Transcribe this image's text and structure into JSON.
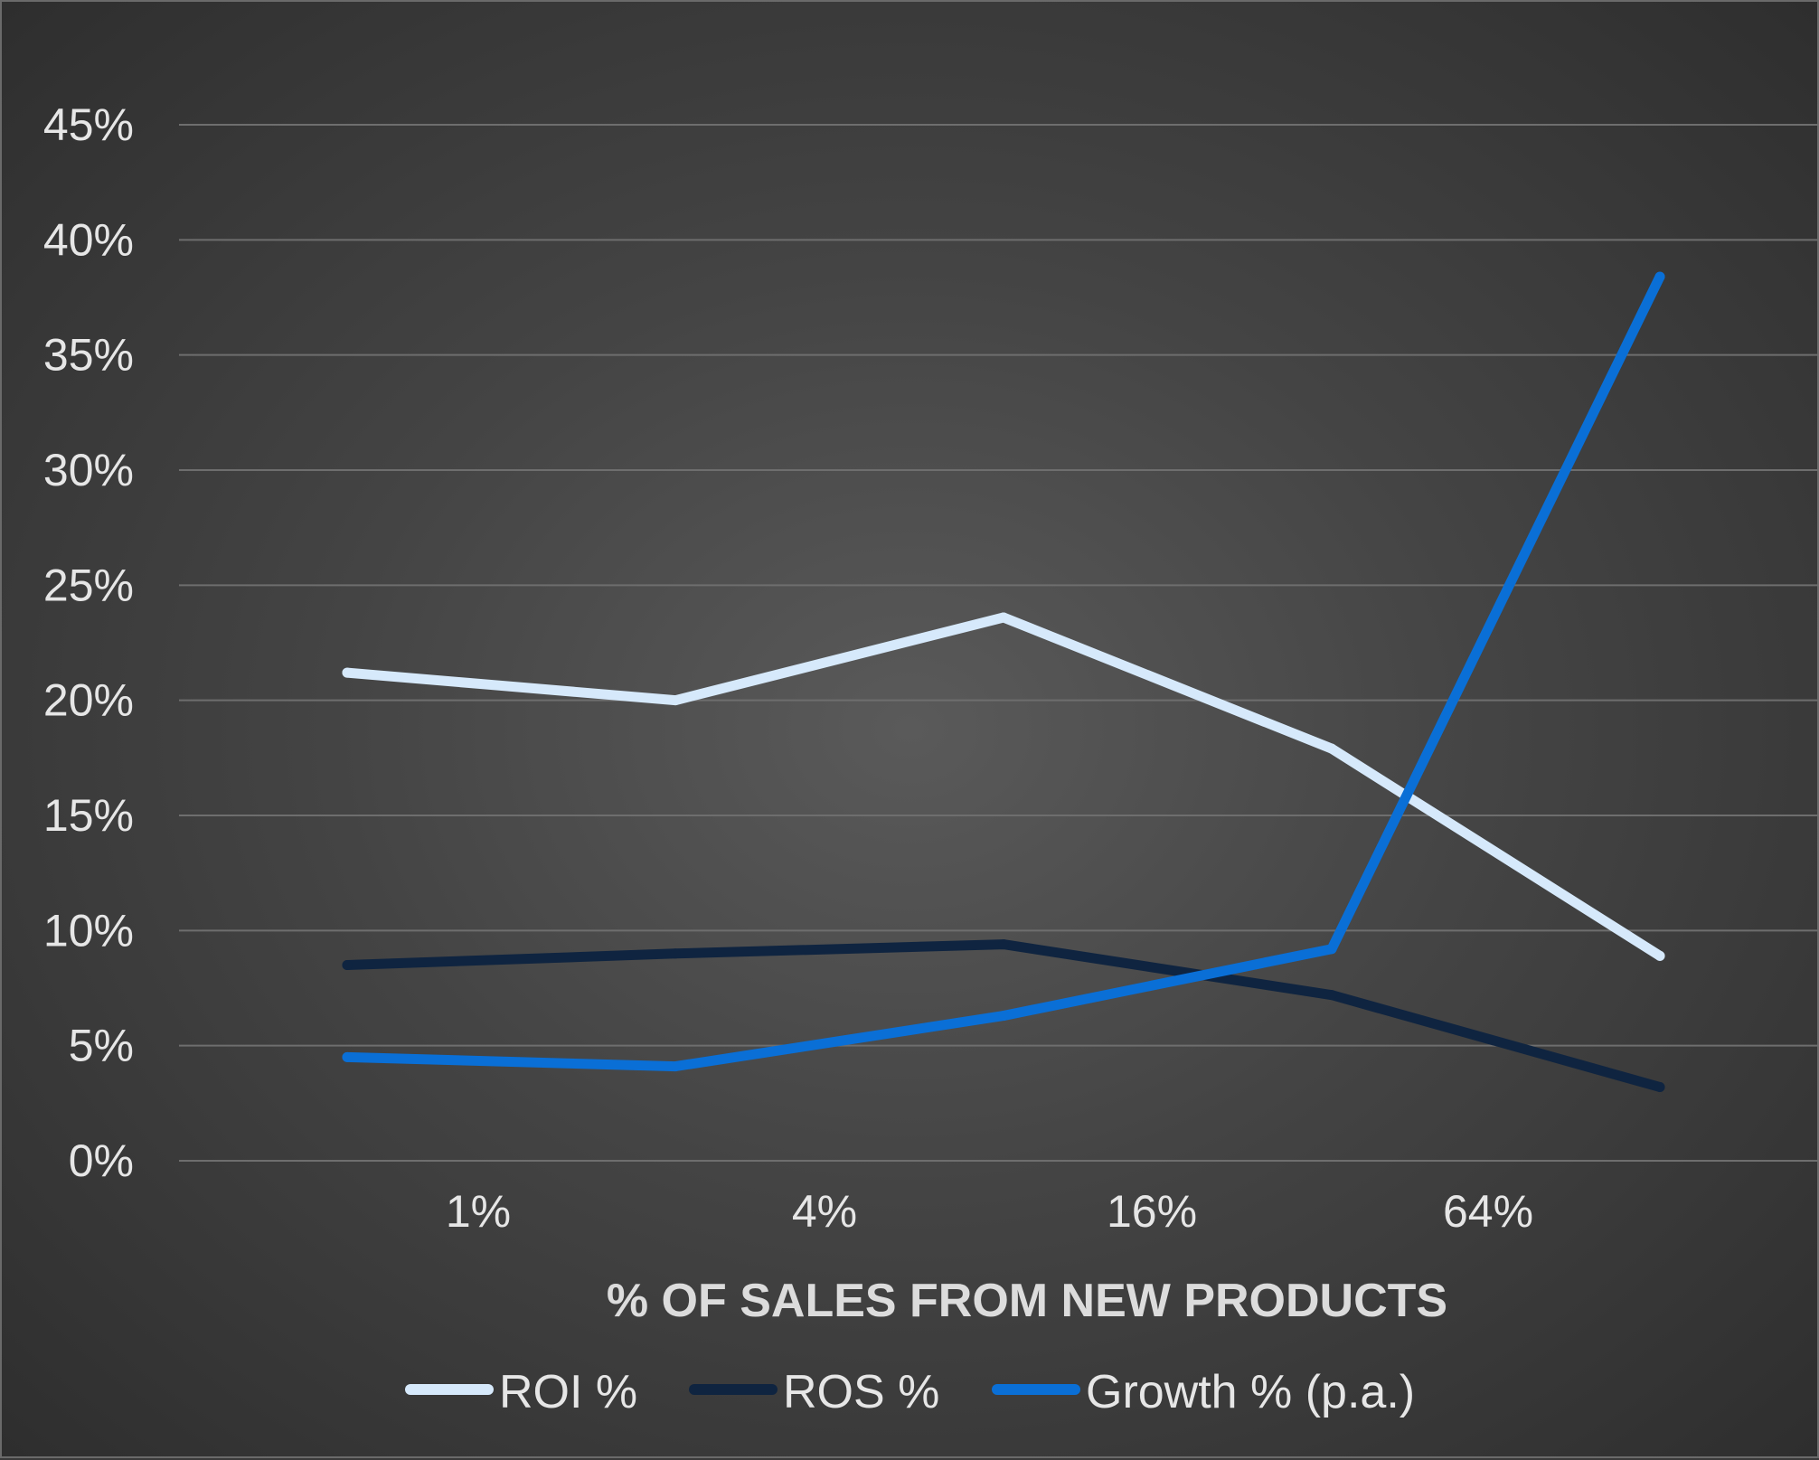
{
  "chart_data": {
    "type": "line",
    "title": "",
    "xlabel": "% OF SALES FROM NEW PRODUCTS",
    "ylabel": "",
    "x_tick_labels": [
      "1%",
      "4%",
      "16%",
      "64%"
    ],
    "x_points": 5,
    "yticks": [
      "0%",
      "5%",
      "10%",
      "15%",
      "20%",
      "25%",
      "30%",
      "35%",
      "40%",
      "45%"
    ],
    "ylim": [
      0,
      45
    ],
    "grid": true,
    "legend": "bottom",
    "series": [
      {
        "name": "ROI %",
        "color": "#d6e9fb",
        "values": [
          21.2,
          20.0,
          23.6,
          17.9,
          8.9
        ]
      },
      {
        "name": "ROS %",
        "color": "#0f2440",
        "values": [
          8.5,
          9.0,
          9.4,
          7.2,
          3.2
        ]
      },
      {
        "name": "Growth % (p.a.)",
        "color": "#0a6fd6",
        "values": [
          4.5,
          4.1,
          6.3,
          9.2,
          38.4
        ]
      }
    ]
  }
}
